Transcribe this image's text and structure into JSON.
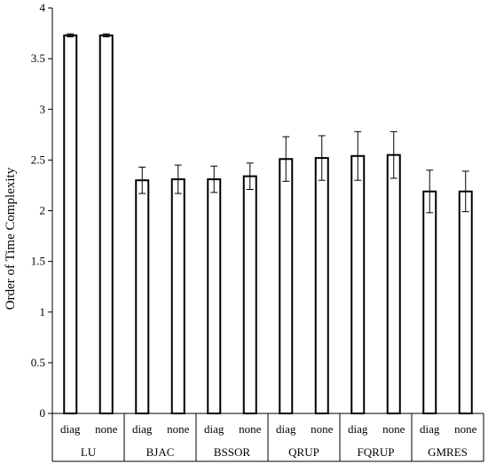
{
  "chart_data": {
    "type": "bar",
    "ylabel": "Order of Time Complexity",
    "ylim": [
      0,
      4
    ],
    "yticks": [
      "0",
      "0.5",
      "1",
      "1.5",
      "2",
      "2.5",
      "3",
      "3.5",
      "4"
    ],
    "groups": [
      "LU",
      "BJAC",
      "BSSOR",
      "QRUP",
      "FQRUP",
      "GMRES"
    ],
    "subcategories": [
      "diag",
      "none"
    ],
    "bars": [
      {
        "group": "LU",
        "sub": "diag",
        "value": 3.73,
        "err": 0.015
      },
      {
        "group": "LU",
        "sub": "none",
        "value": 3.73,
        "err": 0.015
      },
      {
        "group": "BJAC",
        "sub": "diag",
        "value": 2.3,
        "err": 0.13
      },
      {
        "group": "BJAC",
        "sub": "none",
        "value": 2.31,
        "err": 0.14
      },
      {
        "group": "BSSOR",
        "sub": "diag",
        "value": 2.31,
        "err": 0.13
      },
      {
        "group": "BSSOR",
        "sub": "none",
        "value": 2.34,
        "err": 0.13
      },
      {
        "group": "QRUP",
        "sub": "diag",
        "value": 2.51,
        "err": 0.22
      },
      {
        "group": "QRUP",
        "sub": "none",
        "value": 2.52,
        "err": 0.22
      },
      {
        "group": "FQRUP",
        "sub": "diag",
        "value": 2.54,
        "err": 0.24
      },
      {
        "group": "FQRUP",
        "sub": "none",
        "value": 2.55,
        "err": 0.23
      },
      {
        "group": "GMRES",
        "sub": "diag",
        "value": 2.19,
        "err": 0.21
      },
      {
        "group": "GMRES",
        "sub": "none",
        "value": 2.19,
        "err": 0.2
      }
    ],
    "grid": false,
    "legend": "none",
    "colors": {
      "bar_fill": "#ffffff",
      "bar_stroke": "#000000",
      "axis": "#000000"
    }
  }
}
